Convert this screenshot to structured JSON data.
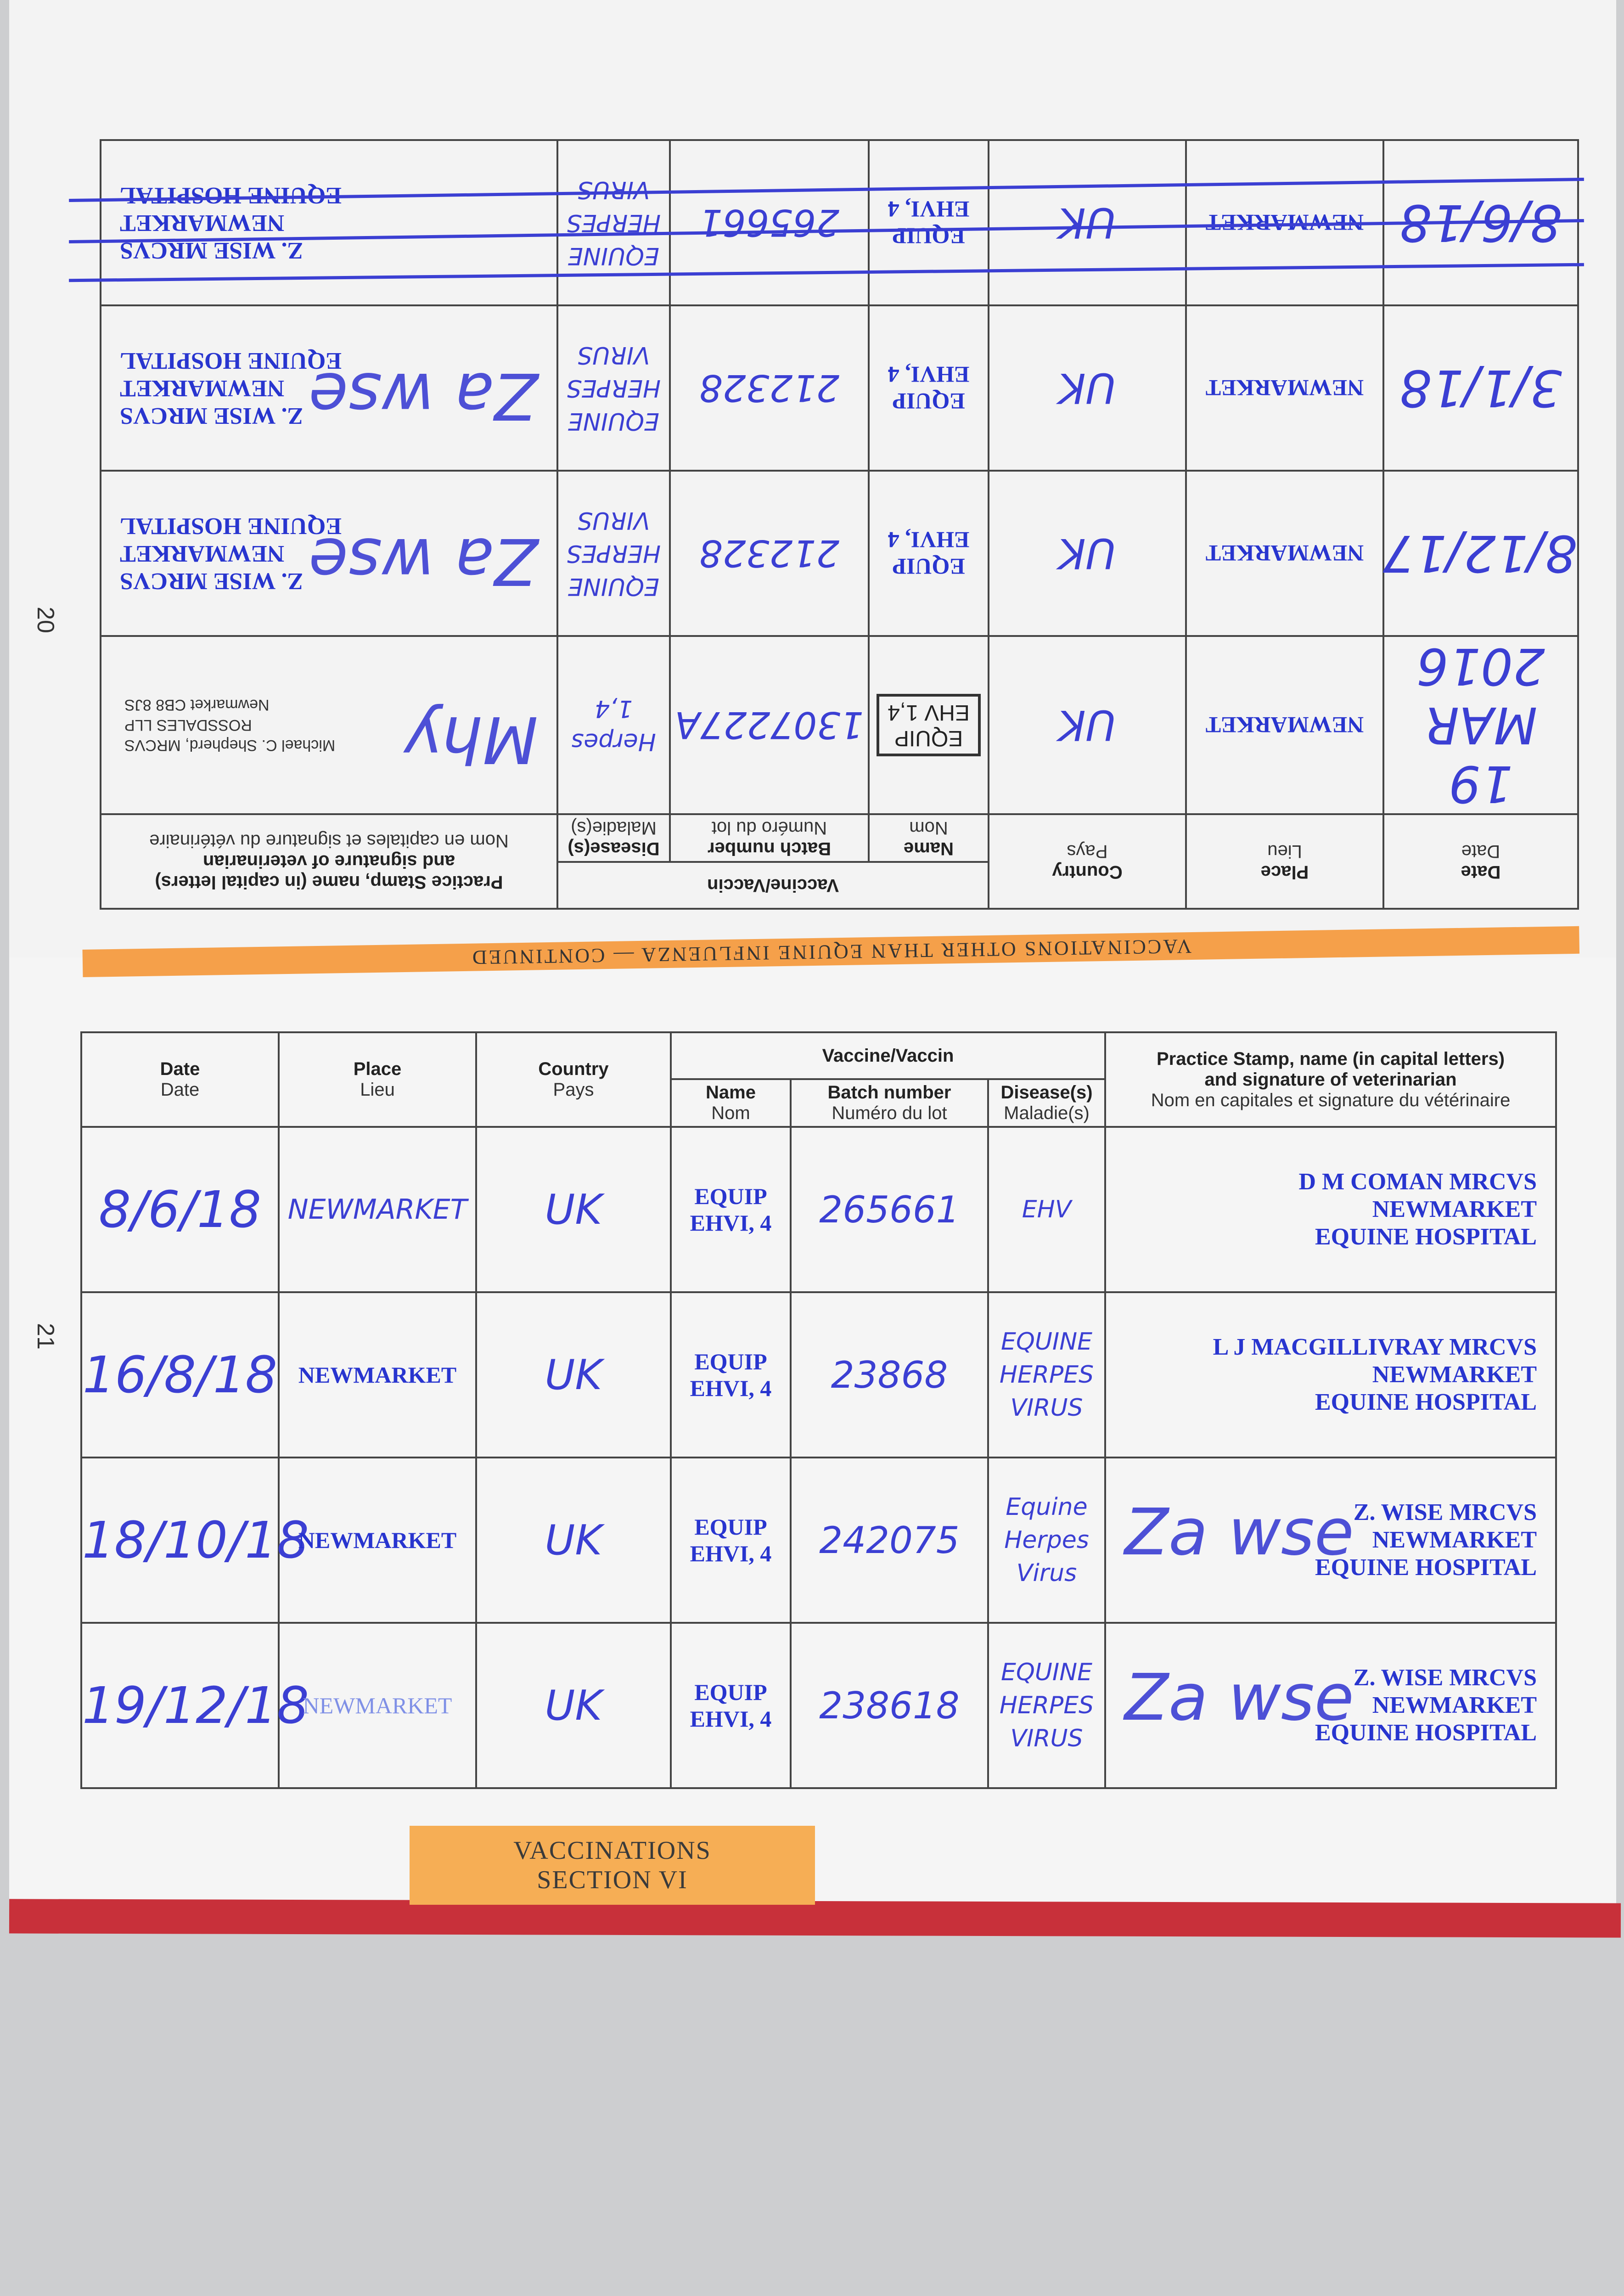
{
  "page_numbers": {
    "left": "20",
    "right": "21"
  },
  "header": {
    "date": "Date",
    "date_fr": "Date",
    "place": "Place",
    "place_fr": "Lieu",
    "country": "Country",
    "country_fr": "Pays",
    "vaccine": "Vaccine/Vaccin",
    "name": "Name",
    "name_fr": "Nom",
    "batch": "Batch number",
    "batch_fr": "Numéro du lot",
    "disease": "Disease(s)",
    "disease_fr": "Maladie(s)",
    "stamp1": "Practice Stamp, name (in capital letters)",
    "stamp2": "and signature of veterinarian",
    "stamp_fr": "Nom en capitales et signature du vétérinaire"
  },
  "band_text": "VACCINATIONS OTHER THAN EQUINE INFLUENZA — CONTINUED",
  "page20_rows": [
    {
      "date": "19 MAR 2016",
      "place": "NEWMARKET",
      "country": "UK",
      "name_stamp": [
        "EQUIP",
        "EHV 1,4"
      ],
      "batch": "1307227A",
      "disease": [
        "Herpes",
        "1,4"
      ],
      "stamp": [
        "Michael C. Shepherd, MRCVS",
        "ROSSDALES LLP",
        "Newmarket CB8 8JS"
      ],
      "signature": "Mhy"
    },
    {
      "date": "8/12/17",
      "place": "NEWMARKET",
      "country": "UK",
      "name": "EQUIP EHVI, 4",
      "batch": "212328",
      "disease": [
        "EQUINE",
        "HERPES",
        "VIRUS"
      ],
      "stamp": [
        "Z. WISE MRCVS",
        "NEWMARKET",
        "EQUINE HOSPITAL"
      ],
      "signature": "Za wse"
    },
    {
      "date": "3/1/18",
      "place": "NEWMARKET",
      "country": "UK",
      "name": "EQUIP EHVI, 4",
      "batch": "212328",
      "disease": [
        "EQUINE",
        "HERPES",
        "VIRUS"
      ],
      "stamp": [
        "Z. WISE MRCVS",
        "NEWMARKET",
        "EQUINE HOSPITAL"
      ],
      "signature": "Za wse"
    },
    {
      "date": "8/6/18",
      "place": "NEWMARKET",
      "country": "UK",
      "name": "EQUIP EHVI, 4",
      "batch": "265661",
      "disease": [
        "EQUINE",
        "HERPES",
        "VIRUS"
      ],
      "stamp": [
        "Z. WISE MRCVS",
        "NEWMARKET",
        "EQUINE HOSPITAL"
      ],
      "crossed_out": true
    }
  ],
  "page21_rows": [
    {
      "date": "8/6/18",
      "place": "NEWMARKET",
      "country": "UK",
      "name": "EQUIP EHVI, 4",
      "batch": "265661",
      "disease": [
        "EHV"
      ],
      "stamp": [
        "D M COMAN MRCVS",
        "NEWMARKET",
        "EQUINE HOSPITAL"
      ]
    },
    {
      "date": "16/8/18",
      "place": "NEWMARKET",
      "country": "UK",
      "name": "EQUIP EHVI, 4",
      "batch": "23868",
      "disease": [
        "EQUINE",
        "HERPES",
        "VIRUS"
      ],
      "stamp": [
        "L J MACGILLIVRAY MRCVS",
        "NEWMARKET",
        "EQUINE HOSPITAL"
      ]
    },
    {
      "date": "18/10/18",
      "place": "NEWMARKET",
      "country": "UK",
      "name": "EQUIP EHVI, 4",
      "batch": "242075",
      "disease": [
        "Equine",
        "Herpes",
        "Virus"
      ],
      "stamp": [
        "Z. WISE MRCVS",
        "NEWMARKET",
        "EQUINE HOSPITAL"
      ],
      "signature": "Za wse"
    },
    {
      "date": "19/12/18",
      "place": "NEWMARKET",
      "country": "UK",
      "name": "EQUIP EHVI, 4",
      "batch": "238618",
      "disease": [
        "EQUINE",
        "HERPES",
        "VIRUS"
      ],
      "stamp": [
        "Z. WISE MRCVS",
        "NEWMARKET",
        "EQUINE HOSPITAL"
      ],
      "signature": "Za wse"
    }
  ],
  "section_tab": {
    "line1": "VACCINATIONS",
    "line2": "SECTION VI"
  },
  "colors": {
    "ink": "#3b3fd3",
    "stamp": "#2835cf",
    "orange": "#f5a04a",
    "cover_red": "#c8303a"
  }
}
